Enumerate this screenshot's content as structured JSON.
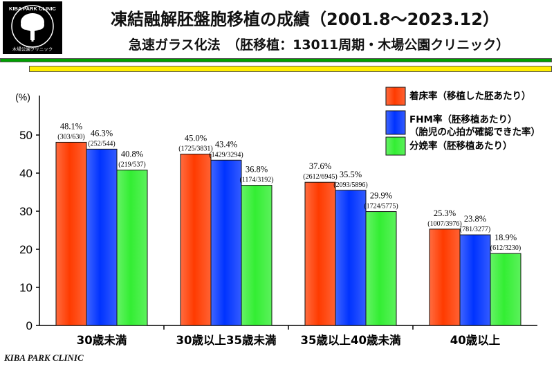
{
  "logo": {
    "name": "KIBA PARK CLINIC",
    "sub": "木場公園クリニック"
  },
  "header": {
    "title": "凍結融解胚盤胞移植の成績（2001.8〜2023.12）",
    "subtitle": "急速ガラス化法　（胚移植：13011周期・木場公園クリニック）"
  },
  "footer": "KIBA PARK CLINIC",
  "colors": {
    "series1": "#ff3b00",
    "series2": "#0033ff",
    "series3": "#33ee33"
  },
  "chart_data": {
    "type": "bar",
    "ylabel": "(%)",
    "ylim": [
      0,
      50
    ],
    "yticks": [
      0,
      10,
      20,
      30,
      40,
      50
    ],
    "grid": false,
    "legend_position": "top-right",
    "categories": [
      "30歳未満",
      "30歳以上35歳未満",
      "35歳以上40歳未満",
      "40歳以上"
    ],
    "series": [
      {
        "name": "着床率（移植した胚あたり）",
        "values": [
          48.1,
          45.0,
          37.6,
          25.3
        ],
        "value_labels": [
          "48.1%",
          "45.0%",
          "37.6%",
          "25.3%"
        ],
        "count_labels": [
          "(303/630)",
          "(1725/3831)",
          "(2612/6945)",
          "(1007/3976)"
        ]
      },
      {
        "name": "FHM率（胚移植あたり）（胎児の心拍が確認できた率）",
        "legend_line1": "FHM率（胚移植あたり）",
        "legend_line2": "（胎児の心拍が確認できた率）",
        "values": [
          46.3,
          43.4,
          35.5,
          23.8
        ],
        "value_labels": [
          "46.3%",
          "43.4%",
          "35.5%",
          "23.8%"
        ],
        "count_labels": [
          "(252/544)",
          "(1429/3294)",
          "(2093/5896)",
          "(781/3277)"
        ]
      },
      {
        "name": "分娩率（胚移植あたり）",
        "values": [
          40.8,
          36.8,
          29.9,
          18.9
        ],
        "value_labels": [
          "40.8%",
          "36.8%",
          "29.9%",
          "18.9%"
        ],
        "count_labels": [
          "(219/537)",
          "(1174/3192)",
          "(1724/5775)",
          "(612/3230)"
        ]
      }
    ]
  }
}
